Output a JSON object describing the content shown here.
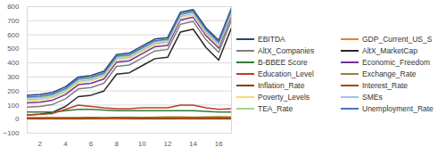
{
  "chart_data": {
    "type": "line",
    "x": [
      1,
      2,
      3,
      4,
      5,
      6,
      7,
      8,
      9,
      10,
      11,
      12,
      13,
      14,
      15,
      16,
      17
    ],
    "xlim": [
      1,
      17
    ],
    "xticks": [
      2,
      4,
      6,
      8,
      10,
      12,
      14,
      16
    ],
    "ylim": [
      -100,
      800
    ],
    "yticks": [
      -100,
      0,
      100,
      200,
      300,
      400,
      500,
      600,
      700,
      800
    ],
    "grid": true,
    "legend": "right",
    "series": [
      {
        "name": "EBITDA",
        "color": "#264478",
        "values": [
          170,
          175,
          190,
          230,
          300,
          310,
          340,
          460,
          470,
          520,
          570,
          580,
          760,
          780,
          650,
          560,
          790
        ]
      },
      {
        "name": "GDP_Current_US_S",
        "color": "#ed7d31",
        "values": [
          2,
          2,
          2,
          2,
          2,
          2,
          2,
          2,
          2,
          2,
          2,
          2,
          2,
          2,
          2,
          2,
          2
        ]
      },
      {
        "name": "AltX_Companies",
        "color": "#7f7f7f",
        "values": [
          85,
          90,
          105,
          145,
          215,
          225,
          255,
          375,
          385,
          435,
          485,
          495,
          675,
          695,
          565,
          475,
          705
        ]
      },
      {
        "name": "AltX_MarketCap",
        "color": "#262626",
        "values": [
          30,
          35,
          50,
          90,
          160,
          170,
          200,
          320,
          330,
          380,
          430,
          440,
          620,
          640,
          510,
          420,
          650
        ]
      },
      {
        "name": "B-BBEE Score",
        "color": "#2e7d32",
        "values": [
          50,
          50,
          50,
          60,
          70,
          70,
          65,
          60,
          60,
          60,
          60,
          60,
          60,
          60,
          55,
          50,
          50
        ]
      },
      {
        "name": "Economic_Freedom",
        "color": "#7030a0",
        "values": [
          115,
          120,
          135,
          175,
          245,
          255,
          285,
          405,
          415,
          465,
          515,
          525,
          705,
          725,
          595,
          505,
          735
        ]
      },
      {
        "name": "Education_Level",
        "color": "#c0392b",
        "values": [
          30,
          35,
          40,
          70,
          100,
          90,
          80,
          75,
          75,
          80,
          80,
          80,
          100,
          100,
          80,
          70,
          75
        ]
      },
      {
        "name": "Exchange_Rate",
        "color": "#a07e3c",
        "values": [
          7,
          8,
          9,
          10,
          10,
          11,
          10,
          12,
          14,
          13,
          14,
          15,
          16,
          14,
          15,
          17,
          16
        ]
      },
      {
        "name": "Inflation_Rate",
        "color": "#843c0c",
        "values": [
          6,
          5,
          6,
          5,
          4,
          6,
          6,
          7,
          6,
          5,
          4,
          5,
          6,
          5,
          6,
          4,
          5
        ]
      },
      {
        "name": "Interest_Rate",
        "color": "#9e480e",
        "values": [
          10,
          9,
          9,
          9,
          10,
          11,
          10,
          9,
          8,
          7,
          7,
          7,
          7,
          7,
          7,
          7,
          7
        ]
      },
      {
        "name": "Poverty_Levels",
        "color": "#ffd966",
        "values": [
          130,
          135,
          150,
          190,
          260,
          270,
          300,
          420,
          430,
          480,
          530,
          540,
          720,
          740,
          610,
          520,
          750
        ]
      },
      {
        "name": "SMEs",
        "color": "#9dc3e6",
        "values": [
          140,
          145,
          160,
          200,
          270,
          280,
          310,
          430,
          440,
          490,
          540,
          550,
          730,
          750,
          620,
          530,
          760
        ]
      },
      {
        "name": "TEA_Rate",
        "color": "#a9d18e",
        "values": [
          150,
          155,
          170,
          210,
          280,
          290,
          320,
          440,
          450,
          500,
          550,
          560,
          740,
          760,
          630,
          540,
          770
        ]
      },
      {
        "name": "Unemployment_Rate",
        "color": "#4472c4",
        "values": [
          158,
          163,
          178,
          218,
          288,
          298,
          328,
          448,
          458,
          508,
          558,
          568,
          748,
          768,
          638,
          548,
          778
        ]
      }
    ]
  }
}
